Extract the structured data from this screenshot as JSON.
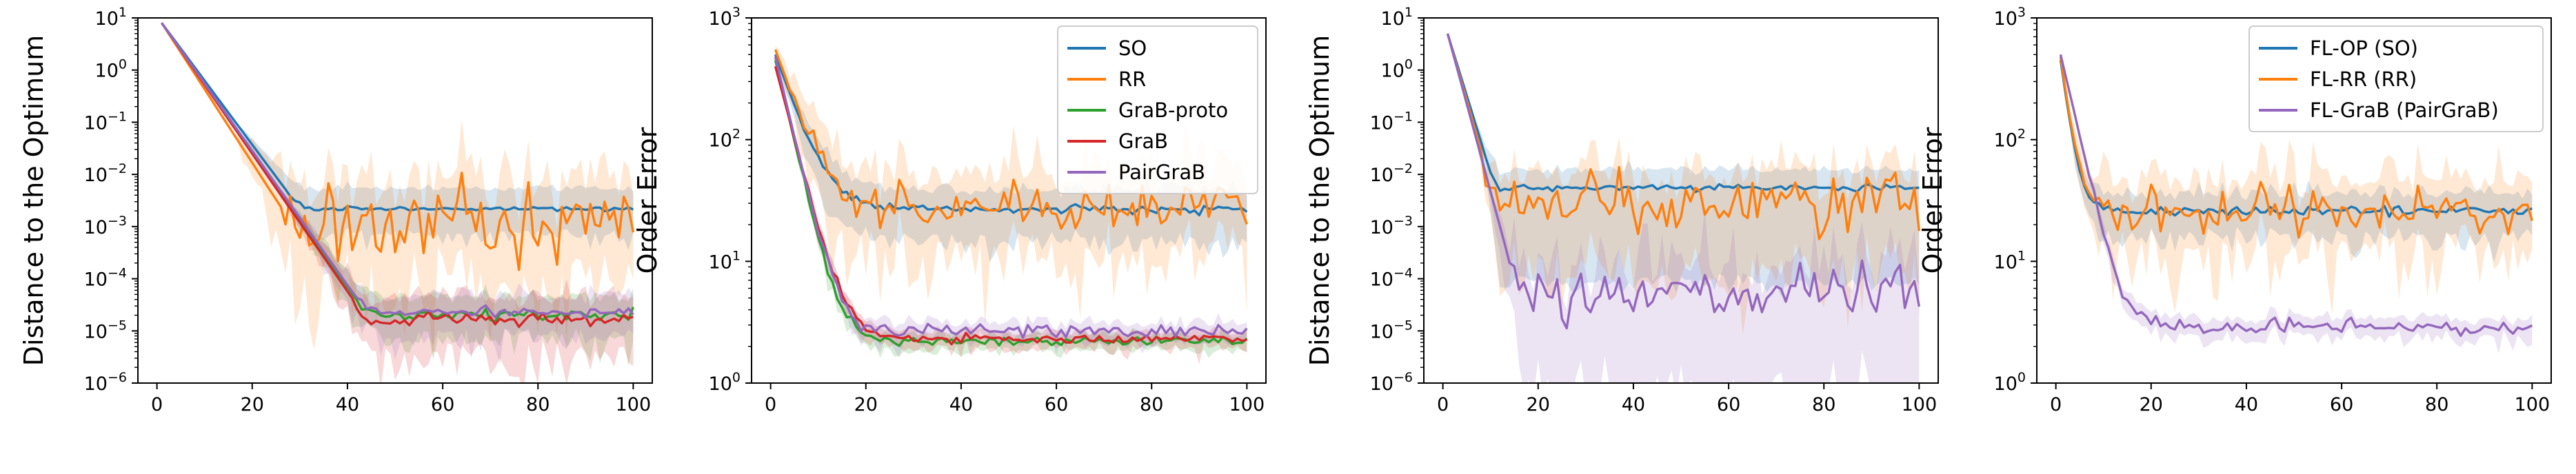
{
  "chart_data": [
    {
      "type": "line",
      "ylabel": "Distance to the Optimum",
      "xlabel": "",
      "yscale": "log",
      "xlim": [
        -4,
        104
      ],
      "ylim": [
        1e-06,
        10
      ],
      "xticks": [
        0,
        20,
        40,
        60,
        80,
        100
      ],
      "xtick_labels": [
        "0",
        "20",
        "40",
        "60",
        "80",
        "100"
      ],
      "yticks": [
        1e-06,
        1e-05,
        0.0001,
        0.001,
        0.01,
        0.1,
        1,
        10
      ],
      "ytick_labels": [
        [
          "10",
          "−6"
        ],
        [
          "10",
          "−5"
        ],
        [
          "10",
          "−4"
        ],
        [
          "10",
          "−3"
        ],
        [
          "10",
          "−2"
        ],
        [
          "10",
          "−1"
        ],
        [
          "10",
          "0"
        ],
        [
          "10",
          "1"
        ]
      ],
      "legend": null,
      "series": [
        {
          "name": "SO",
          "color": "#1f77b4",
          "start": 8,
          "floor": 0.0022,
          "kneeX": 30,
          "noise": 0.02,
          "band": [
            0.4,
            2.2
          ],
          "bandNoise": 0.15,
          "seed": 11
        },
        {
          "name": "RR",
          "color": "#ff7f0e",
          "start": 8,
          "floor": 0.0009,
          "kneeX": 29,
          "noise": 0.35,
          "band": [
            0.15,
            4.5
          ],
          "bandNoise": 0.6,
          "seed": 23
        },
        {
          "name": "GraB-proto",
          "color": "#2ca02c",
          "start": 8,
          "floor": 2.1e-05,
          "kneeX": 44,
          "noise": 0.06,
          "band": [
            0.5,
            1.9
          ],
          "bandNoise": 0.25,
          "seed": 37
        },
        {
          "name": "GraB",
          "color": "#d62728",
          "start": 8,
          "floor": 1.7e-05,
          "kneeX": 44,
          "noise": 0.07,
          "band": [
            0.35,
            2.1
          ],
          "bandNoise": 0.35,
          "seed": 41
        },
        {
          "name": "PairGraB",
          "color": "#9467bd",
          "start": 8,
          "floor": 2.3e-05,
          "kneeX": 44,
          "noise": 0.05,
          "band": [
            0.5,
            1.8
          ],
          "bandNoise": 0.25,
          "seed": 53
        }
      ]
    },
    {
      "type": "line",
      "ylabel": "Order Error",
      "xlabel": "",
      "yscale": "log",
      "xlim": [
        -4,
        104
      ],
      "ylim": [
        1,
        1000
      ],
      "xticks": [
        0,
        20,
        40,
        60,
        80,
        100
      ],
      "xtick_labels": [
        "0",
        "20",
        "40",
        "60",
        "80",
        "100"
      ],
      "yticks": [
        1,
        10,
        100,
        1000
      ],
      "ytick_labels": [
        [
          "10",
          "0"
        ],
        [
          "10",
          "1"
        ],
        [
          "10",
          "2"
        ],
        [
          "10",
          "3"
        ]
      ],
      "legend": "top-right",
      "series": [
        {
          "name": "SO",
          "color": "#1f77b4",
          "start": 500,
          "floor": 27,
          "tau": 3.8,
          "noise": 0.02,
          "band": [
            0.65,
            1.35
          ],
          "bandNoise": 0.1,
          "seed": 61
        },
        {
          "name": "RR",
          "color": "#ff7f0e",
          "start": 550,
          "floor": 27,
          "tau": 3.8,
          "noise": 0.09,
          "band": [
            0.6,
            1.6
          ],
          "bandNoise": 0.25,
          "seed": 67
        },
        {
          "name": "GraB-proto",
          "color": "#2ca02c",
          "start": 450,
          "floor": 2.2,
          "tau": 2.6,
          "noise": 0.02,
          "band": [
            0.9,
            1.1
          ],
          "bandNoise": 0.05,
          "seed": 71
        },
        {
          "name": "GraB",
          "color": "#d62728",
          "start": 400,
          "floor": 2.3,
          "tau": 2.9,
          "noise": 0.02,
          "band": [
            0.9,
            1.1
          ],
          "bandNoise": 0.05,
          "seed": 73
        },
        {
          "name": "PairGraB",
          "color": "#9467bd",
          "start": 480,
          "floor": 2.7,
          "tau": 2.6,
          "noise": 0.03,
          "band": [
            0.88,
            1.12
          ],
          "bandNoise": 0.05,
          "seed": 79
        }
      ]
    },
    {
      "type": "line",
      "ylabel": "Distance to the Optimum",
      "xlabel": "",
      "yscale": "log",
      "xlim": [
        -4,
        104
      ],
      "ylim": [
        1e-06,
        10
      ],
      "xticks": [
        0,
        20,
        40,
        60,
        80,
        100
      ],
      "xtick_labels": [
        "0",
        "20",
        "40",
        "60",
        "80",
        "100"
      ],
      "yticks": [
        1e-06,
        1e-05,
        0.0001,
        0.001,
        0.01,
        0.1,
        1,
        10
      ],
      "ytick_labels": [
        [
          "10",
          "−6"
        ],
        [
          "10",
          "−5"
        ],
        [
          "10",
          "−4"
        ],
        [
          "10",
          "−3"
        ],
        [
          "10",
          "−2"
        ],
        [
          "10",
          "−1"
        ],
        [
          "10",
          "0"
        ],
        [
          "10",
          "1"
        ]
      ],
      "legend": null,
      "series": [
        {
          "name": "FL-OP (SO)",
          "color": "#1f77b4",
          "start": 5,
          "floor": 0.0055,
          "kneeX": 11,
          "noise": 0.03,
          "band": [
            0.02,
            2.0
          ],
          "bandNoise": 0.15,
          "seed": 83
        },
        {
          "name": "FL-RR (RR)",
          "color": "#ff7f0e",
          "start": 5,
          "floor": 0.0032,
          "kneeX": 11,
          "noise": 0.3,
          "band": [
            0.08,
            2.8
          ],
          "bandNoise": 0.4,
          "seed": 89
        },
        {
          "name": "FL-GraB (PairGraB)",
          "color": "#9467bd",
          "start": 5,
          "floor": 4.5e-05,
          "kneeX": 16,
          "noise": 0.3,
          "band": [
            0.03,
            1.8
          ],
          "bandNoise": 0.9,
          "seed": 97
        }
      ]
    },
    {
      "type": "line",
      "ylabel": "Order Error",
      "xlabel": "",
      "yscale": "log",
      "xlim": [
        -4,
        104
      ],
      "ylim": [
        1,
        1000
      ],
      "xticks": [
        0,
        20,
        40,
        60,
        80,
        100
      ],
      "xtick_labels": [
        "0",
        "20",
        "40",
        "60",
        "80",
        "100"
      ],
      "yticks": [
        1,
        10,
        100,
        1000
      ],
      "ytick_labels": [
        [
          "10",
          "0"
        ],
        [
          "10",
          "1"
        ],
        [
          "10",
          "2"
        ],
        [
          "10",
          "3"
        ]
      ],
      "legend": "top-right",
      "series": [
        {
          "name": "FL-OP (SO)",
          "color": "#1f77b4",
          "start": 450,
          "floor": 26,
          "tau": 1.5,
          "noise": 0.02,
          "band": [
            0.7,
            1.3
          ],
          "bandNoise": 0.1,
          "seed": 101
        },
        {
          "name": "FL-RR (RR)",
          "color": "#ff7f0e",
          "start": 480,
          "floor": 26,
          "tau": 1.5,
          "noise": 0.09,
          "band": [
            0.65,
            1.55
          ],
          "bandNoise": 0.25,
          "seed": 103
        },
        {
          "name": "FL-GraB (PairGraB)",
          "color": "#9467bd",
          "start": 500,
          "floor": 2.8,
          "tau": 2.6,
          "noise": 0.03,
          "band": [
            0.88,
            1.15
          ],
          "bandNoise": 0.05,
          "seed": 107
        }
      ]
    }
  ]
}
